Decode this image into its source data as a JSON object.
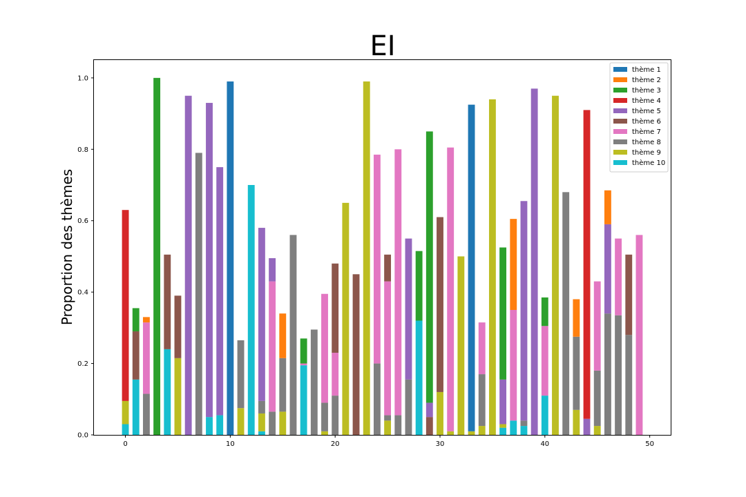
{
  "chart_data": {
    "type": "bar",
    "stacked": true,
    "title": "EI",
    "xlabel": "",
    "ylabel": "Proportion des thèmes",
    "xlim": [
      -3.0,
      52.0
    ],
    "ylim": [
      0.0,
      1.05
    ],
    "xticks": [
      0,
      10,
      20,
      30,
      40,
      50
    ],
    "yticks": [
      0.0,
      0.2,
      0.4,
      0.6,
      0.8,
      1.0
    ],
    "xtick_labels": [
      "0",
      "10",
      "20",
      "30",
      "40",
      "50"
    ],
    "ytick_labels": [
      "0.0",
      "0.2",
      "0.4",
      "0.6",
      "0.8",
      "1.0"
    ],
    "legend_position": "top-right",
    "grid": false,
    "x": [
      0,
      1,
      2,
      3,
      4,
      5,
      6,
      7,
      8,
      9,
      10,
      11,
      12,
      13,
      14,
      15,
      16,
      17,
      18,
      19,
      20,
      21,
      22,
      23,
      24,
      25,
      26,
      27,
      28,
      29,
      30,
      31,
      32,
      33,
      34,
      35,
      36,
      37,
      38,
      39,
      40,
      41,
      42,
      43,
      44,
      45,
      46,
      47,
      48,
      49
    ],
    "series": [
      {
        "name": "thème 1",
        "color": "#1f77b4",
        "values": [
          0,
          0,
          0,
          0,
          0,
          0,
          0,
          0,
          0,
          0,
          0.99,
          0,
          0,
          0,
          0,
          0,
          0,
          0,
          0,
          0,
          0,
          0,
          0,
          0,
          0,
          0,
          0,
          0,
          0,
          0,
          0,
          0,
          0,
          0.915,
          0,
          0,
          0,
          0,
          0,
          0,
          0,
          0,
          0,
          0,
          0,
          0,
          0,
          0,
          0,
          0
        ]
      },
      {
        "name": "thème 2",
        "color": "#ff7f0e",
        "values": [
          0,
          0,
          0.015,
          0,
          0,
          0,
          0,
          0,
          0,
          0,
          0,
          0,
          0,
          0,
          0,
          0.125,
          0,
          0,
          0,
          0,
          0,
          0,
          0,
          0,
          0,
          0,
          0,
          0,
          0,
          0,
          0,
          0,
          0,
          0,
          0,
          0,
          0,
          0.255,
          0,
          0,
          0,
          0,
          0,
          0.105,
          0,
          0,
          0.095,
          0,
          0,
          0
        ]
      },
      {
        "name": "thème 3",
        "color": "#2ca02c",
        "values": [
          0,
          0.065,
          0,
          1.0,
          0,
          0,
          0,
          0,
          0,
          0,
          0,
          0,
          0,
          0,
          0,
          0,
          0,
          0.07,
          0,
          0,
          0,
          0,
          0,
          0,
          0,
          0,
          0,
          0,
          0.195,
          0.76,
          0,
          0,
          0,
          0,
          0,
          0,
          0.37,
          0,
          0,
          0,
          0.08,
          0,
          0,
          0,
          0,
          0,
          0,
          0,
          0,
          0
        ]
      },
      {
        "name": "thème 4",
        "color": "#d62728",
        "values": [
          0.535,
          0,
          0,
          0,
          0,
          0,
          0,
          0,
          0,
          0,
          0,
          0,
          0,
          0,
          0,
          0,
          0,
          0,
          0,
          0,
          0,
          0,
          0,
          0,
          0,
          0,
          0,
          0,
          0,
          0,
          0,
          0,
          0,
          0,
          0,
          0,
          0,
          0,
          0,
          0,
          0,
          0,
          0,
          0,
          0.865,
          0,
          0,
          0,
          0,
          0
        ]
      },
      {
        "name": "thème 5",
        "color": "#9467bd",
        "values": [
          0,
          0,
          0,
          0,
          0,
          0,
          0.95,
          0,
          0.88,
          0.695,
          0,
          0,
          0,
          0.485,
          0.065,
          0,
          0,
          0,
          0,
          0,
          0,
          0,
          0,
          0,
          0,
          0,
          0,
          0.395,
          0,
          0.04,
          0,
          0,
          0,
          0,
          0,
          0,
          0.125,
          0,
          0.615,
          0.97,
          0,
          0,
          0,
          0,
          0.045,
          0,
          0.25,
          0,
          0,
          0
        ]
      },
      {
        "name": "thème 6",
        "color": "#8c564b",
        "values": [
          0,
          0.135,
          0,
          0,
          0.265,
          0.175,
          0,
          0,
          0,
          0,
          0,
          0,
          0,
          0,
          0,
          0,
          0,
          0,
          0,
          0,
          0.25,
          0,
          0.45,
          0,
          0,
          0.075,
          0,
          0,
          0,
          0.05,
          0.49,
          0,
          0,
          0,
          0,
          0,
          0,
          0,
          0,
          0,
          0,
          0,
          0,
          0,
          0,
          0,
          0,
          0,
          0.225,
          0
        ]
      },
      {
        "name": "thème 7",
        "color": "#e377c2",
        "values": [
          0,
          0,
          0.2,
          0,
          0,
          0,
          0,
          0,
          0,
          0,
          0,
          0,
          0,
          0,
          0.365,
          0,
          0,
          0.005,
          0,
          0.305,
          0.12,
          0,
          0,
          0,
          0.585,
          0.375,
          0.745,
          0,
          0,
          0,
          0,
          0.795,
          0,
          0,
          0.145,
          0,
          0,
          0.31,
          0,
          0,
          0.195,
          0,
          0,
          0,
          0,
          0.25,
          0,
          0.215,
          0,
          0.56
        ]
      },
      {
        "name": "thème 8",
        "color": "#7f7f7f",
        "values": [
          0,
          0,
          0.115,
          0,
          0,
          0,
          0,
          0.79,
          0,
          0,
          0,
          0.19,
          0,
          0.035,
          0.065,
          0.15,
          0.56,
          0,
          0.295,
          0.08,
          0.11,
          0,
          0,
          0,
          0.2,
          0.015,
          0.055,
          0.155,
          0,
          0,
          0,
          0,
          0,
          0,
          0.145,
          0,
          0,
          0,
          0.015,
          0,
          0,
          0,
          0.68,
          0.205,
          0,
          0.155,
          0.34,
          0.335,
          0.28,
          0
        ]
      },
      {
        "name": "thème 9",
        "color": "#bcbd22",
        "values": [
          0.065,
          0,
          0,
          0,
          0,
          0.215,
          0,
          0,
          0,
          0,
          0,
          0.075,
          0,
          0.05,
          0,
          0.065,
          0,
          0,
          0,
          0.01,
          0,
          0.65,
          0,
          0.99,
          0,
          0.04,
          0,
          0,
          0,
          0,
          0.12,
          0.01,
          0.5,
          0.01,
          0.025,
          0.94,
          0.01,
          0,
          0,
          0,
          0,
          0.95,
          0,
          0.07,
          0,
          0.025,
          0,
          0,
          0,
          0
        ]
      },
      {
        "name": "thème 10",
        "color": "#17becf",
        "values": [
          0.03,
          0.155,
          0,
          0,
          0.24,
          0,
          0,
          0,
          0.05,
          0.055,
          0,
          0,
          0.7,
          0.01,
          0,
          0,
          0,
          0.195,
          0,
          0,
          0,
          0,
          0,
          0,
          0,
          0,
          0,
          0,
          0.32,
          0,
          0,
          0,
          0,
          0,
          0,
          0,
          0.02,
          0.04,
          0.025,
          0,
          0.11,
          0,
          0,
          0,
          0,
          0,
          0,
          0,
          0,
          0
        ]
      }
    ]
  }
}
